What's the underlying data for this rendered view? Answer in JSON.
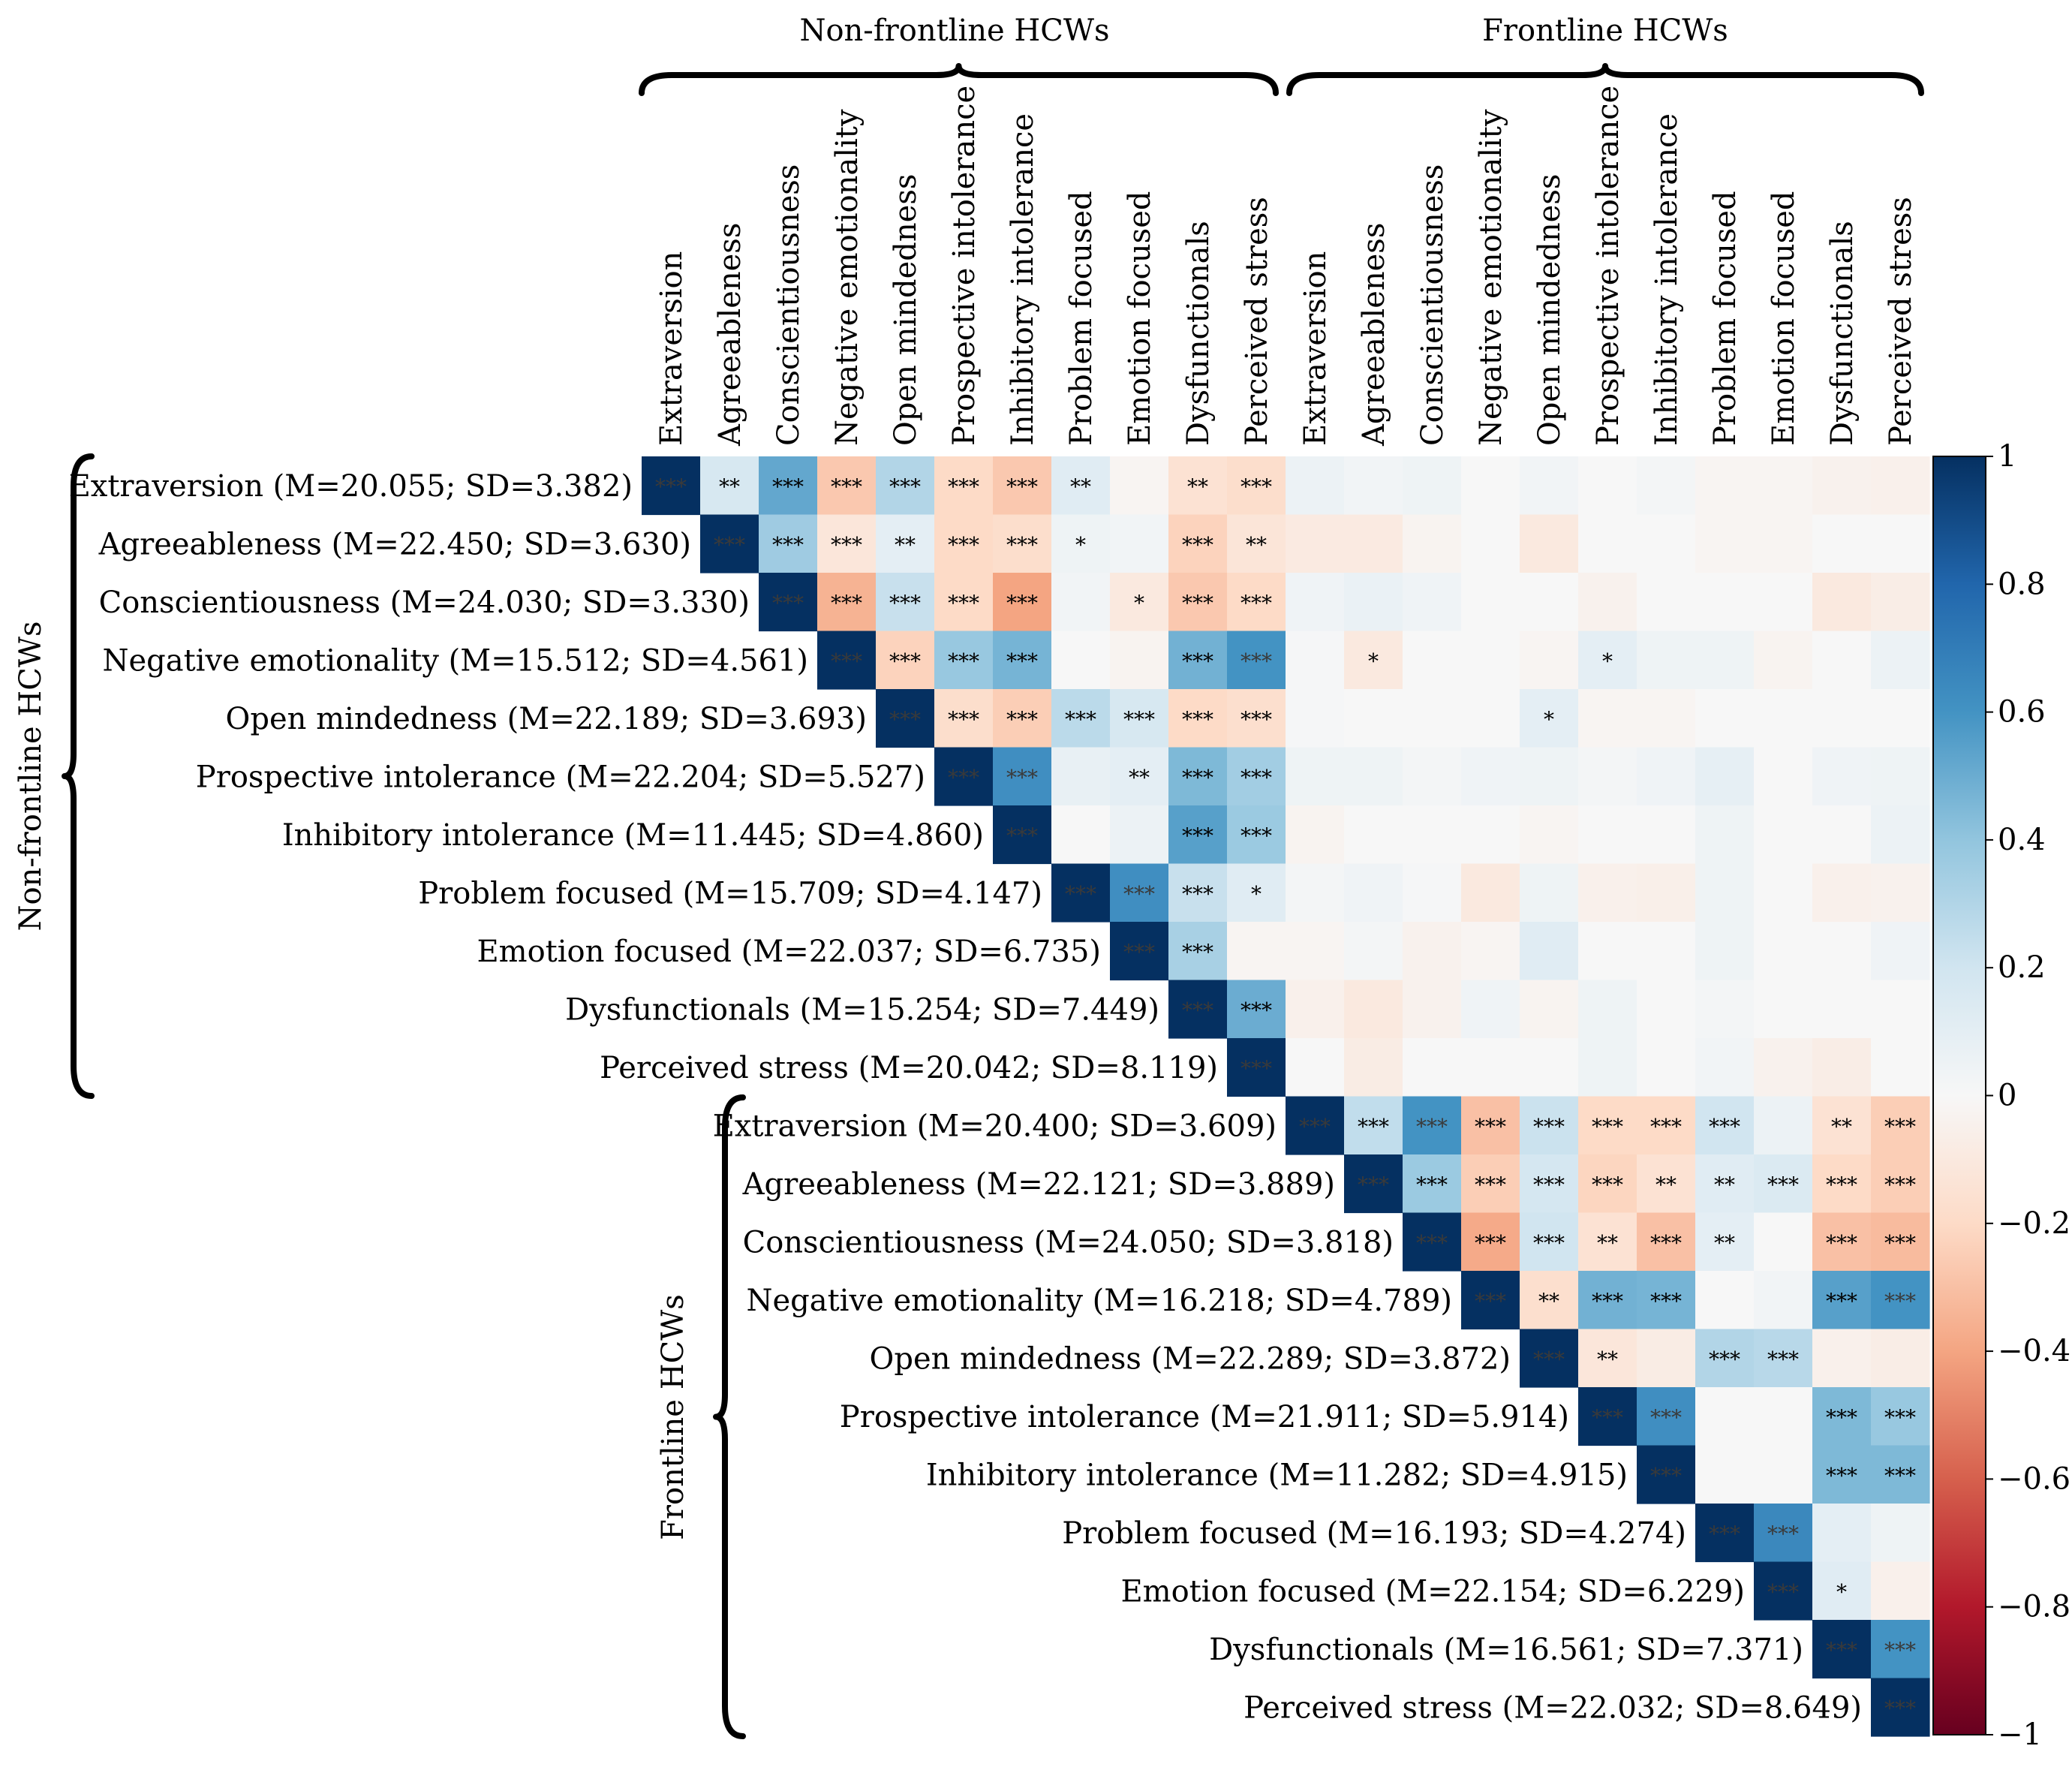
{
  "chart_data": {
    "type": "heatmap",
    "title": "",
    "variables": [
      "Extraversion",
      "Agreeableness",
      "Conscientiousness",
      "Negative emotionality",
      "Open mindedness",
      "Prospective intolerance",
      "Inhibitory intolerance",
      "Problem focused",
      "Emotion focused",
      "Dysfunctionals",
      "Perceived stress"
    ],
    "groups": [
      {
        "name": "Non-frontline HCWs",
        "stats": [
          "(M=20.055; SD=3.382)",
          "(M=22.450; SD=3.630)",
          "(M=24.030; SD=3.330)",
          "(M=15.512; SD=4.561)",
          "(M=22.189; SD=3.693)",
          "(M=22.204; SD=5.527)",
          "(M=11.445; SD=4.860)",
          "(M=15.709; SD=4.147)",
          "(M=22.037; SD=6.735)",
          "(M=15.254; SD=7.449)",
          "(M=20.042; SD=8.119)"
        ]
      },
      {
        "name": "Frontline HCWs",
        "stats": [
          "(M=20.400; SD=3.609)",
          "(M=22.121; SD=3.889)",
          "(M=24.050; SD=3.818)",
          "(M=16.218; SD=4.789)",
          "(M=22.289; SD=3.872)",
          "(M=21.911; SD=5.914)",
          "(M=11.282; SD=4.915)",
          "(M=16.193; SD=4.274)",
          "(M=22.154; SD=6.229)",
          "(M=16.561; SD=7.371)",
          "(M=22.032; SD=8.649)"
        ]
      }
    ],
    "values": [
      [
        1,
        0.17,
        0.52,
        -0.27,
        0.3,
        -0.2,
        -0.27,
        0.12,
        -0.02,
        -0.15,
        -0.18,
        0.06,
        0.03,
        0.05,
        0,
        0.03,
        0,
        0.02,
        -0.02,
        -0.02,
        -0.04,
        -0.05
      ],
      [
        null,
        1,
        0.36,
        -0.12,
        0.1,
        -0.2,
        -0.18,
        0.05,
        0.03,
        -0.23,
        -0.13,
        -0.09,
        -0.09,
        -0.03,
        0,
        -0.1,
        0,
        0,
        -0.02,
        -0.02,
        0,
        0
      ],
      [
        null,
        null,
        1,
        -0.35,
        0.23,
        -0.2,
        -0.4,
        0.03,
        -0.1,
        -0.27,
        -0.2,
        0.04,
        0.07,
        0.04,
        0,
        0,
        -0.04,
        0,
        0,
        0,
        -0.1,
        -0.07
      ],
      [
        null,
        null,
        null,
        1,
        -0.23,
        0.38,
        0.47,
        0,
        -0.03,
        0.48,
        0.6,
        0.01,
        -0.1,
        0,
        0,
        -0.02,
        0.1,
        0.05,
        0.05,
        -0.03,
        0,
        0.06
      ],
      [
        null,
        null,
        null,
        null,
        1,
        -0.18,
        -0.25,
        0.27,
        0.17,
        -0.2,
        -0.17,
        0.01,
        0,
        0,
        0,
        0.1,
        -0.02,
        -0.02,
        0,
        0,
        0,
        0
      ],
      [
        null,
        null,
        null,
        null,
        null,
        1,
        0.62,
        0.08,
        0.1,
        0.45,
        0.35,
        0.05,
        0.05,
        0.02,
        0.04,
        0.05,
        0.02,
        0.04,
        0.09,
        0,
        0.04,
        0.05
      ],
      [
        null,
        null,
        null,
        null,
        null,
        null,
        1,
        0,
        0.06,
        0.55,
        0.37,
        -0.03,
        0,
        0,
        0,
        -0.02,
        0,
        0,
        0.05,
        0,
        0,
        0.06
      ],
      [
        null,
        null,
        null,
        null,
        null,
        null,
        null,
        1,
        0.62,
        0.23,
        0.12,
        0.02,
        0.04,
        0.01,
        -0.1,
        0.05,
        -0.05,
        -0.06,
        0.05,
        0,
        -0.05,
        -0.04
      ],
      [
        null,
        null,
        null,
        null,
        null,
        null,
        null,
        null,
        1,
        0.33,
        -0.02,
        -0.02,
        0.02,
        -0.04,
        -0.02,
        0.12,
        0,
        0,
        0.05,
        0,
        0,
        0.04
      ],
      [
        null,
        null,
        null,
        null,
        null,
        null,
        null,
        null,
        null,
        1,
        0.5,
        -0.05,
        -0.1,
        -0.04,
        0.04,
        -0.03,
        0.05,
        0,
        0.02,
        0,
        0,
        0
      ],
      [
        null,
        null,
        null,
        null,
        null,
        null,
        null,
        null,
        null,
        null,
        1,
        0,
        -0.08,
        0,
        0,
        0,
        0.05,
        0,
        0.03,
        -0.04,
        -0.07,
        0
      ],
      [
        null,
        null,
        null,
        null,
        null,
        null,
        null,
        null,
        null,
        null,
        null,
        1,
        0.25,
        0.6,
        -0.3,
        0.22,
        -0.2,
        -0.2,
        0.2,
        0.06,
        -0.15,
        -0.25
      ],
      [
        null,
        null,
        null,
        null,
        null,
        null,
        null,
        null,
        null,
        null,
        null,
        null,
        1,
        0.37,
        -0.25,
        0.18,
        -0.22,
        -0.15,
        0.12,
        0.15,
        -0.2,
        -0.25
      ],
      [
        null,
        null,
        null,
        null,
        null,
        null,
        null,
        null,
        null,
        null,
        null,
        null,
        null,
        1,
        -0.38,
        0.2,
        -0.15,
        -0.3,
        0.1,
        0,
        -0.3,
        -0.32
      ],
      [
        null,
        null,
        null,
        null,
        null,
        null,
        null,
        null,
        null,
        null,
        null,
        null,
        null,
        null,
        1,
        -0.17,
        0.48,
        0.47,
        0,
        0.03,
        0.55,
        0.6
      ],
      [
        null,
        null,
        null,
        null,
        null,
        null,
        null,
        null,
        null,
        null,
        null,
        null,
        null,
        null,
        null,
        1,
        -0.12,
        -0.08,
        0.3,
        0.28,
        -0.05,
        -0.07
      ],
      [
        null,
        null,
        null,
        null,
        null,
        null,
        null,
        null,
        null,
        null,
        null,
        null,
        null,
        null,
        null,
        null,
        1,
        0.62,
        0,
        0,
        0.45,
        0.38
      ],
      [
        null,
        null,
        null,
        null,
        null,
        null,
        null,
        null,
        null,
        null,
        null,
        null,
        null,
        null,
        null,
        null,
        null,
        1,
        0,
        0,
        0.45,
        0.45
      ],
      [
        null,
        null,
        null,
        null,
        null,
        null,
        null,
        null,
        null,
        null,
        null,
        null,
        null,
        null,
        null,
        null,
        null,
        null,
        1,
        0.65,
        0.1,
        0.05
      ],
      [
        null,
        null,
        null,
        null,
        null,
        null,
        null,
        null,
        null,
        null,
        null,
        null,
        null,
        null,
        null,
        null,
        null,
        null,
        null,
        1,
        0.12,
        -0.05
      ],
      [
        null,
        null,
        null,
        null,
        null,
        null,
        null,
        null,
        null,
        null,
        null,
        null,
        null,
        null,
        null,
        null,
        null,
        null,
        null,
        null,
        1,
        0.6
      ],
      [
        null,
        null,
        null,
        null,
        null,
        null,
        null,
        null,
        null,
        null,
        null,
        null,
        null,
        null,
        null,
        null,
        null,
        null,
        null,
        null,
        null,
        1
      ]
    ],
    "significance": [
      [
        "***",
        "**",
        "***",
        "***",
        "***",
        "***",
        "***",
        "**",
        "",
        "**",
        "***",
        "",
        "",
        "",
        "",
        "",
        "",
        "",
        "",
        "",
        "",
        ""
      ],
      [
        "",
        "***",
        "***",
        "***",
        "**",
        "***",
        "***",
        "*",
        "",
        "***",
        "**",
        "",
        "",
        "",
        "",
        "",
        "",
        "",
        "",
        "",
        "",
        ""
      ],
      [
        "",
        "",
        "***",
        "***",
        "***",
        "***",
        "***",
        "",
        "*",
        "***",
        "***",
        "",
        "",
        "",
        "",
        "",
        "",
        "",
        "",
        "",
        "",
        ""
      ],
      [
        "",
        "",
        "",
        "***",
        "***",
        "***",
        "***",
        "",
        "",
        "***",
        "***",
        "",
        "*",
        "",
        "",
        "",
        "*",
        "",
        "",
        "",
        "",
        ""
      ],
      [
        "",
        "",
        "",
        "",
        "***",
        "***",
        "***",
        "***",
        "***",
        "***",
        "***",
        "",
        "",
        "",
        "",
        "*",
        "",
        "",
        "",
        "",
        "",
        ""
      ],
      [
        "",
        "",
        "",
        "",
        "",
        "***",
        "***",
        "",
        "**",
        "***",
        "***",
        "",
        "",
        "",
        "",
        "",
        "",
        "",
        "",
        "",
        "",
        ""
      ],
      [
        "",
        "",
        "",
        "",
        "",
        "",
        "***",
        "",
        "",
        "***",
        "***",
        "",
        "",
        "",
        "",
        "",
        "",
        "",
        "",
        "",
        "",
        ""
      ],
      [
        "",
        "",
        "",
        "",
        "",
        "",
        "",
        "***",
        "***",
        "***",
        "*",
        "",
        "",
        "",
        "",
        "",
        "",
        "",
        "",
        "",
        "",
        ""
      ],
      [
        "",
        "",
        "",
        "",
        "",
        "",
        "",
        "",
        "***",
        "***",
        "",
        "",
        "",
        "",
        "",
        "",
        "",
        "",
        "",
        "",
        "",
        ""
      ],
      [
        "",
        "",
        "",
        "",
        "",
        "",
        "",
        "",
        "",
        "***",
        "***",
        "",
        "",
        "",
        "",
        "",
        "",
        "",
        "",
        "",
        "",
        ""
      ],
      [
        "",
        "",
        "",
        "",
        "",
        "",
        "",
        "",
        "",
        "",
        "***",
        "",
        "",
        "",
        "",
        "",
        "",
        "",
        "",
        "",
        "",
        ""
      ],
      [
        "",
        "",
        "",
        "",
        "",
        "",
        "",
        "",
        "",
        "",
        "",
        "***",
        "***",
        "***",
        "***",
        "***",
        "***",
        "***",
        "***",
        "",
        "**",
        "***"
      ],
      [
        "",
        "",
        "",
        "",
        "",
        "",
        "",
        "",
        "",
        "",
        "",
        "",
        "***",
        "***",
        "***",
        "***",
        "***",
        "**",
        "**",
        "***",
        "***",
        "***"
      ],
      [
        "",
        "",
        "",
        "",
        "",
        "",
        "",
        "",
        "",
        "",
        "",
        "",
        "",
        "***",
        "***",
        "***",
        "**",
        "***",
        "**",
        "",
        "***",
        "***"
      ],
      [
        "",
        "",
        "",
        "",
        "",
        "",
        "",
        "",
        "",
        "",
        "",
        "",
        "",
        "",
        "***",
        "**",
        "***",
        "***",
        "",
        "",
        "***",
        "***"
      ],
      [
        "",
        "",
        "",
        "",
        "",
        "",
        "",
        "",
        "",
        "",
        "",
        "",
        "",
        "",
        "",
        "***",
        "**",
        "",
        "***",
        "***",
        "",
        ""
      ],
      [
        "",
        "",
        "",
        "",
        "",
        "",
        "",
        "",
        "",
        "",
        "",
        "",
        "",
        "",
        "",
        "",
        "***",
        "***",
        "",
        "",
        "***",
        "***"
      ],
      [
        "",
        "",
        "",
        "",
        "",
        "",
        "",
        "",
        "",
        "",
        "",
        "",
        "",
        "",
        "",
        "",
        "",
        "***",
        "",
        "",
        "***",
        "***"
      ],
      [
        "",
        "",
        "",
        "",
        "",
        "",
        "",
        "",
        "",
        "",
        "",
        "",
        "",
        "",
        "",
        "",
        "",
        "",
        "***",
        "***",
        "",
        ""
      ],
      [
        "",
        "",
        "",
        "",
        "",
        "",
        "",
        "",
        "",
        "",
        "",
        "",
        "",
        "",
        "",
        "",
        "",
        "",
        "",
        "***",
        "*",
        ""
      ],
      [
        "",
        "",
        "",
        "",
        "",
        "",
        "",
        "",
        "",
        "",
        "",
        "",
        "",
        "",
        "",
        "",
        "",
        "",
        "",
        "",
        "***",
        "***"
      ],
      [
        "",
        "",
        "",
        "",
        "",
        "",
        "",
        "",
        "",
        "",
        "",
        "",
        "",
        "",
        "",
        "",
        "",
        "",
        "",
        "",
        "",
        "***"
      ]
    ],
    "colorbar": {
      "range": [
        -1,
        1
      ],
      "ticks": [
        "1",
        "0.8",
        "0.6",
        "0.4",
        "0.2",
        "0",
        "−0.2",
        "−0.4",
        "−0.6",
        "−0.8",
        "−1"
      ]
    },
    "colorscale": [
      "#67001f",
      "#b2182b",
      "#d6604d",
      "#f4a582",
      "#fddbc7",
      "#f7f7f7",
      "#d1e5f0",
      "#92c5de",
      "#4393c3",
      "#2166ac",
      "#053061"
    ],
    "xlabel": "",
    "ylabel": ""
  }
}
